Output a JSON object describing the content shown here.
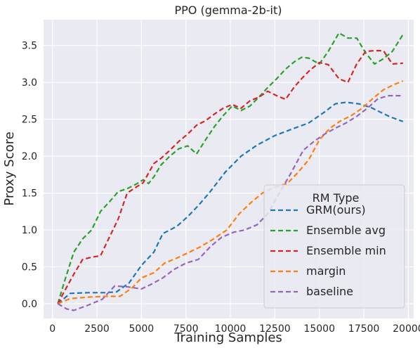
{
  "chart_data": {
    "type": "line",
    "title": "PPO (gemma-2b-it)",
    "xlabel": "Training Samples",
    "ylabel": "Proxy Score",
    "xlim": [
      -500,
      20300
    ],
    "ylim": [
      -0.2,
      3.85
    ],
    "xticks": [
      0,
      2500,
      5000,
      7500,
      10000,
      12500,
      15000,
      17500,
      20000
    ],
    "yticks": [
      0.0,
      0.5,
      1.0,
      1.5,
      2.0,
      2.5,
      3.0,
      3.5
    ],
    "grid": true,
    "background": "#eaeaf2",
    "legend": {
      "title": "RM Type",
      "placement": "lower-right"
    },
    "series": [
      {
        "name": "GRM(ours)",
        "color": "#1f77b4",
        "x": [
          300,
          1000,
          2000,
          3000,
          3600,
          4300,
          5000,
          5700,
          6200,
          7000,
          7600,
          8200,
          8900,
          9700,
          10600,
          11500,
          12500,
          13500,
          14400,
          15300,
          15900,
          16500,
          17200,
          17900,
          18400,
          19000,
          19700
        ],
        "y": [
          0.0,
          0.14,
          0.15,
          0.15,
          0.16,
          0.28,
          0.52,
          0.7,
          0.95,
          1.05,
          1.18,
          1.33,
          1.53,
          1.78,
          2.0,
          2.15,
          2.28,
          2.37,
          2.45,
          2.6,
          2.71,
          2.73,
          2.71,
          2.66,
          2.6,
          2.53,
          2.47
        ]
      },
      {
        "name": "Ensemble avg",
        "color": "#2ca02c",
        "x": [
          300,
          700,
          1200,
          1700,
          2200,
          2700,
          3200,
          3700,
          4200,
          4700,
          5100,
          5400,
          5700,
          6100,
          6600,
          7100,
          7600,
          8100,
          8600,
          9100,
          9600,
          10100,
          10600,
          11100,
          11600,
          12100,
          12600,
          13100,
          13600,
          14000,
          14400,
          15000,
          15500,
          16100,
          16600,
          17100,
          17600,
          18100,
          18600,
          19100,
          19700
        ],
        "y": [
          0.0,
          0.32,
          0.7,
          0.88,
          1.0,
          1.25,
          1.38,
          1.52,
          1.56,
          1.62,
          1.68,
          1.63,
          1.72,
          1.88,
          2.0,
          2.1,
          2.14,
          2.03,
          2.22,
          2.4,
          2.55,
          2.68,
          2.62,
          2.68,
          2.8,
          2.93,
          3.05,
          3.18,
          3.28,
          3.34,
          3.33,
          3.25,
          3.42,
          3.67,
          3.6,
          3.6,
          3.4,
          3.25,
          3.32,
          3.42,
          3.65
        ]
      },
      {
        "name": "Ensemble min",
        "color": "#d62728",
        "x": [
          300,
          700,
          1200,
          1700,
          2200,
          2700,
          3200,
          3700,
          4200,
          4700,
          5100,
          5700,
          6100,
          6600,
          7100,
          7600,
          8100,
          8600,
          9100,
          9600,
          10100,
          10600,
          11100,
          11600,
          12100,
          12600,
          13100,
          13600,
          14000,
          14400,
          15000,
          15500,
          16100,
          16600,
          17100,
          17600,
          18100,
          18600,
          19100,
          19700
        ],
        "y": [
          0.0,
          0.18,
          0.4,
          0.6,
          0.63,
          0.65,
          0.9,
          1.15,
          1.5,
          1.58,
          1.64,
          1.9,
          1.97,
          2.08,
          2.2,
          2.3,
          2.42,
          2.48,
          2.57,
          2.65,
          2.7,
          2.65,
          2.75,
          2.8,
          2.88,
          2.82,
          2.77,
          2.94,
          3.05,
          3.15,
          3.27,
          3.24,
          3.05,
          3.0,
          3.25,
          3.42,
          3.43,
          3.43,
          3.25,
          3.26
        ]
      },
      {
        "name": "margin",
        "color": "#ff7f0e",
        "x": [
          300,
          1000,
          2000,
          3000,
          3800,
          4500,
          5000,
          5700,
          6300,
          7000,
          7700,
          8300,
          9000,
          9800,
          10500,
          11200,
          11800,
          12500,
          13200,
          13800,
          14400,
          15000,
          15600,
          16200,
          16800,
          17400,
          18000,
          18600,
          19200,
          19700
        ],
        "y": [
          0.0,
          0.07,
          0.09,
          0.1,
          0.1,
          0.22,
          0.35,
          0.42,
          0.55,
          0.62,
          0.7,
          0.77,
          0.87,
          1.0,
          1.22,
          1.38,
          1.5,
          1.58,
          1.63,
          1.78,
          1.95,
          2.22,
          2.38,
          2.48,
          2.55,
          2.65,
          2.78,
          2.9,
          2.97,
          3.02
        ]
      },
      {
        "name": "baseline",
        "color": "#9467bd",
        "x": [
          300,
          800,
          1200,
          2000,
          2800,
          3500,
          4200,
          5000,
          5600,
          6200,
          6800,
          7500,
          8200,
          8900,
          9500,
          10200,
          10800,
          11500,
          12100,
          12800,
          13400,
          14100,
          14700,
          15300,
          15900,
          16500,
          17100,
          17700,
          18300,
          18900,
          19700
        ],
        "y": [
          0.0,
          -0.07,
          -0.09,
          -0.02,
          0.06,
          0.24,
          0.23,
          0.2,
          0.27,
          0.35,
          0.46,
          0.55,
          0.6,
          0.78,
          0.9,
          0.97,
          1.0,
          1.07,
          1.22,
          1.52,
          1.77,
          2.08,
          2.2,
          2.3,
          2.38,
          2.45,
          2.54,
          2.65,
          2.78,
          2.82,
          2.82
        ]
      }
    ]
  }
}
